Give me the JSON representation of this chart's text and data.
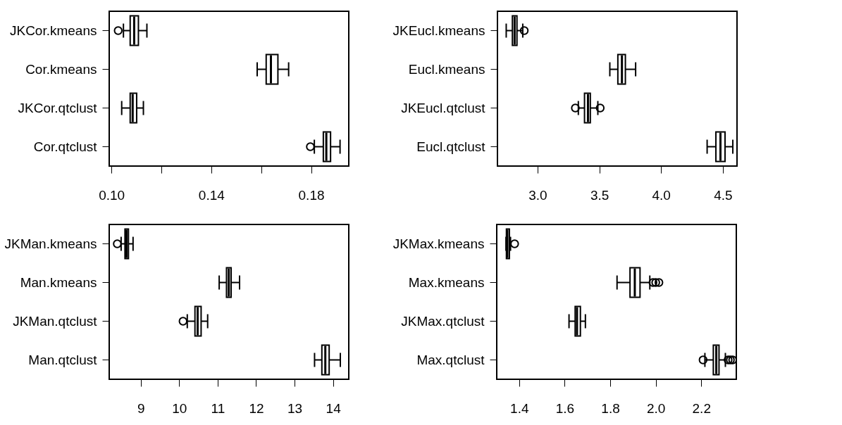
{
  "chart_data": [
    {
      "type": "box",
      "orientation": "horizontal",
      "categories": [
        "JKCor.kmeans",
        "Cor.kmeans",
        "JKCor.qtclust",
        "Cor.qtclust"
      ],
      "boxes": [
        {
          "low": 0.1048,
          "q1": 0.1075,
          "median": 0.1091,
          "q3": 0.1108,
          "high": 0.1142,
          "outliers": [
            0.1027
          ]
        },
        {
          "low": 0.1584,
          "q1": 0.162,
          "median": 0.1639,
          "q3": 0.1667,
          "high": 0.171
        },
        {
          "low": 0.1041,
          "q1": 0.1075,
          "median": 0.1085,
          "q3": 0.1101,
          "high": 0.1128
        },
        {
          "low": 0.1813,
          "q1": 0.1849,
          "median": 0.1861,
          "q3": 0.1878,
          "high": 0.1916,
          "outliers": [
            0.1797
          ]
        }
      ],
      "xlim": [
        0.0991,
        0.1951
      ],
      "xticks": [
        {
          "value": 0.1,
          "label": "0.10"
        },
        {
          "value": 0.12,
          "label": null
        },
        {
          "value": 0.14,
          "label": "0.14"
        },
        {
          "value": 0.16,
          "label": null
        },
        {
          "value": 0.18,
          "label": "0.18"
        }
      ],
      "grid": false
    },
    {
      "type": "box",
      "orientation": "horizontal",
      "categories": [
        "JKEucl.kmeans",
        "Eucl.kmeans",
        "JKEucl.qtclust",
        "Eucl.qtclust"
      ],
      "boxes": [
        {
          "low": 2.746,
          "q1": 2.796,
          "median": 2.814,
          "q3": 2.833,
          "high": 2.88,
          "outliers": [
            2.892
          ]
        },
        {
          "low": 3.585,
          "q1": 3.65,
          "median": 3.683,
          "q3": 3.711,
          "high": 3.794
        },
        {
          "low": 3.33,
          "q1": 3.38,
          "median": 3.408,
          "q3": 3.427,
          "high": 3.488,
          "outliers": [
            3.306,
            3.507
          ]
        },
        {
          "low": 4.373,
          "q1": 4.444,
          "median": 4.481,
          "q3": 4.518,
          "high": 4.581
        }
      ],
      "xlim": [
        2.675,
        4.615
      ],
      "xticks": [
        {
          "value": 3.0,
          "label": "3.0"
        },
        {
          "value": 3.5,
          "label": "3.5"
        },
        {
          "value": 4.0,
          "label": "4.0"
        },
        {
          "value": 4.5,
          "label": "4.5"
        }
      ],
      "grid": false
    },
    {
      "type": "box",
      "orientation": "horizontal",
      "categories": [
        "JKMan.kmeans",
        "Man.kmeans",
        "JKMan.qtclust",
        "Man.qtclust"
      ],
      "boxes": [
        {
          "low": 8.49,
          "q1": 8.59,
          "median": 8.63,
          "q3": 8.68,
          "high": 8.8,
          "outliers": [
            8.39
          ]
        },
        {
          "low": 11.04,
          "q1": 11.23,
          "median": 11.29,
          "q3": 11.35,
          "high": 11.57
        },
        {
          "low": 10.21,
          "q1": 10.41,
          "median": 10.48,
          "q3": 10.57,
          "high": 10.74,
          "outliers": [
            10.1
          ]
        },
        {
          "low": 13.52,
          "q1": 13.71,
          "median": 13.8,
          "q3": 13.9,
          "high": 14.19
        }
      ],
      "xlim": [
        8.18,
        14.41
      ],
      "xticks": [
        9,
        10,
        11,
        12,
        13,
        14
      ],
      "grid": false
    },
    {
      "type": "box",
      "orientation": "horizontal",
      "categories": [
        "JKMax.kmeans",
        "Max.kmeans",
        "JKMax.qtclust",
        "Max.qtclust"
      ],
      "boxes": [
        {
          "low": 1.342,
          "q1": 1.344,
          "median": 1.348,
          "q3": 1.357,
          "high": 1.362,
          "outliers": [
            1.38
          ]
        },
        {
          "low": 1.83,
          "q1": 1.887,
          "median": 1.908,
          "q3": 1.931,
          "high": 1.974,
          "outliers": [
            1.988,
            2.0,
            2.014
          ]
        },
        {
          "low": 1.619,
          "q1": 1.646,
          "median": 1.654,
          "q3": 1.669,
          "high": 1.691
        },
        {
          "low": 2.216,
          "q1": 2.253,
          "median": 2.266,
          "q3": 2.278,
          "high": 2.306,
          "outliers": [
            2.208,
            2.318,
            2.328,
            2.338
          ]
        }
      ],
      "xlim": [
        1.3015,
        2.354
      ],
      "xticks": [
        1.4,
        1.6,
        1.8,
        {
          "value": 2.0,
          "label": "2.0"
        },
        2.2
      ],
      "grid": false
    }
  ]
}
